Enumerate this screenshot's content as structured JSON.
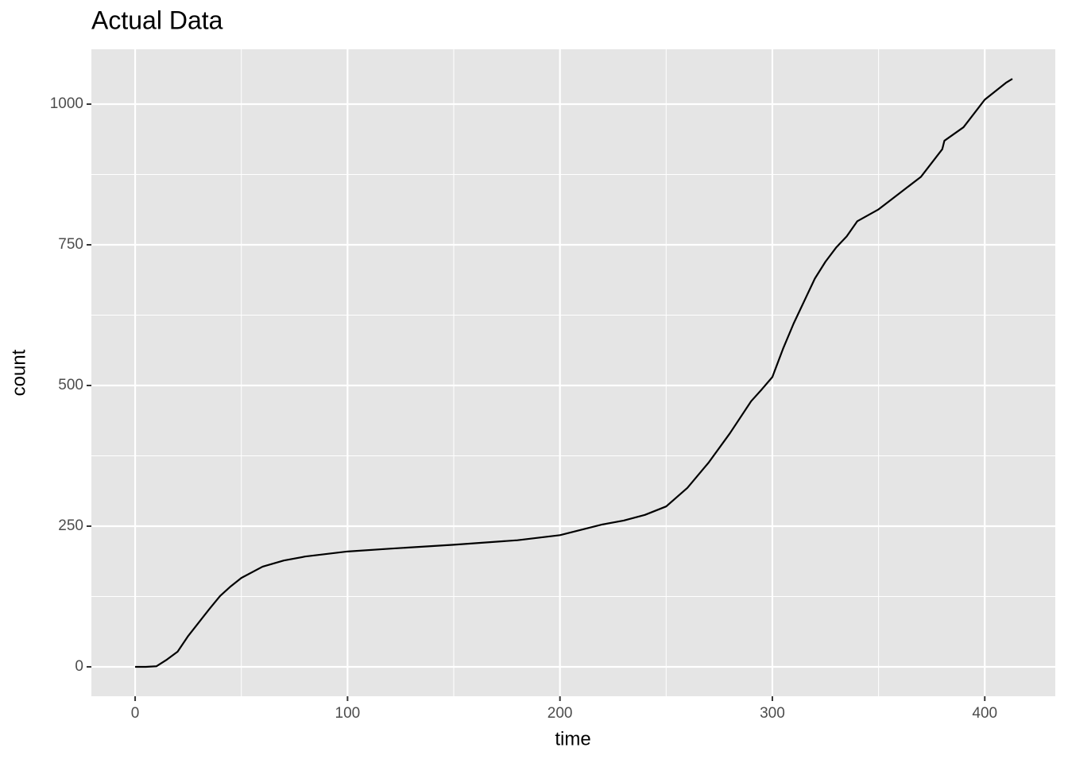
{
  "chart_data": {
    "type": "line",
    "title": "Actual Data",
    "x_label": "time",
    "y_label": "count",
    "x": [
      0,
      5,
      10,
      15,
      20,
      25,
      30,
      35,
      40,
      45,
      50,
      60,
      70,
      80,
      100,
      120,
      150,
      180,
      200,
      220,
      230,
      240,
      250,
      260,
      270,
      280,
      290,
      295,
      300,
      305,
      310,
      315,
      320,
      325,
      330,
      335,
      340,
      350,
      360,
      370,
      380,
      381,
      390,
      400,
      410,
      413
    ],
    "series": [
      {
        "color": "#000000",
        "values": [
          0,
          0,
          1,
          13,
          27,
          55,
          79,
          103,
          126,
          143,
          158,
          178,
          189,
          196,
          205,
          210,
          217,
          225,
          234,
          253,
          260,
          270,
          285,
          318,
          363,
          415,
          472,
          493,
          515,
          565,
          610,
          650,
          690,
          720,
          745,
          765,
          792,
          813,
          842,
          871,
          920,
          935,
          959,
          1008,
          1038,
          1045
        ]
      }
    ],
    "xlim": [
      -20.6,
      433.2
    ],
    "ylim": [
      -52.3,
      1097.5
    ],
    "xticks": [
      0,
      100,
      200,
      300,
      400
    ],
    "yticks": [
      0,
      250,
      500,
      750,
      1000
    ],
    "x_minor_grid": [
      50,
      150,
      250,
      350
    ],
    "y_minor_grid": [
      125,
      375,
      625,
      875
    ],
    "grid": true,
    "panel_color": "#e5e5e5"
  }
}
